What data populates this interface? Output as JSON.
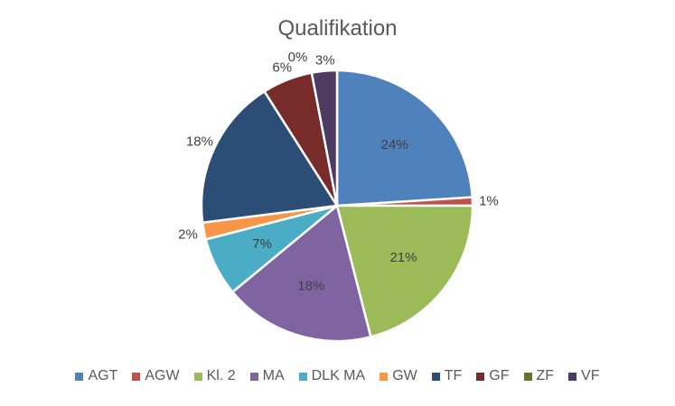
{
  "chart_data": {
    "type": "pie",
    "title": "Qualifikation",
    "categories": [
      "AGT",
      "AGW",
      "Kl. 2",
      "MA",
      "DLK MA",
      "GW",
      "TF",
      "GF",
      "ZF",
      "VF"
    ],
    "values": [
      24,
      1,
      21,
      18,
      7,
      2,
      18,
      6,
      0,
      3
    ],
    "labels": [
      "24%",
      "1%",
      "21%",
      "18%",
      "7%",
      "2%",
      "18%",
      "6%",
      "0%",
      "3%"
    ],
    "colors": [
      "#4F81BD",
      "#C0504D",
      "#9BBB59",
      "#8064A2",
      "#4BACC6",
      "#F79646",
      "#2C4D75",
      "#772C2A",
      "#5F7530",
      "#4D3B62"
    ],
    "legend_position": "bottom"
  }
}
